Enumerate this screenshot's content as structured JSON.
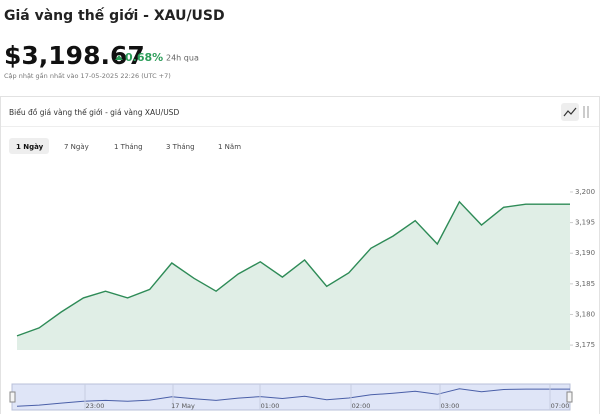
{
  "header": {
    "title": "Giá vàng thế giới - XAU/USD",
    "price": "$3,198.67",
    "change": "0.68%",
    "change_period": "24h qua",
    "updated": "Cập nhật gần nhất vào 17-05-2025 22:26 (UTC +7)"
  },
  "panel": {
    "title": "Biểu đồ giá vàng thế giới - giá vàng XAU/USD",
    "tabs": [
      "1 Ngày",
      "7 Ngày",
      "1 Tháng",
      "3 Tháng",
      "1 Năm"
    ]
  },
  "navigator": {
    "labels": [
      "23:00",
      "17 May",
      "01:00",
      "02:00",
      "03:00",
      "07:00"
    ]
  },
  "chart_data": {
    "type": "area",
    "categories": [
      null,
      null,
      null,
      null,
      null,
      null,
      null,
      null,
      null,
      null,
      null,
      null,
      null,
      null,
      null,
      null,
      null,
      null,
      null,
      null,
      null,
      null,
      null,
      null,
      null,
      null
    ],
    "values": [
      3176.5,
      3177.8,
      3180.4,
      3182.7,
      3183.8,
      3182.7,
      3184.1,
      3188.4,
      3185.9,
      3183.8,
      3186.6,
      3188.6,
      3186.1,
      3188.9,
      3184.6,
      3186.8,
      3190.8,
      3192.8,
      3195.3,
      3191.5,
      3198.4,
      3194.6,
      3197.5,
      3198.0,
      3198.0,
      3198.0
    ],
    "color": "#2e8b57",
    "ylim": [
      3174.2,
      3204.4
    ],
    "yticks": [
      {
        "value": 3175,
        "label": "3,175"
      },
      {
        "value": 3180,
        "label": "3,180"
      },
      {
        "value": 3185,
        "label": "3,185"
      },
      {
        "value": 3190,
        "label": "3,190"
      },
      {
        "value": 3195,
        "label": "3,195"
      },
      {
        "value": 3200,
        "label": "3,200"
      }
    ]
  }
}
